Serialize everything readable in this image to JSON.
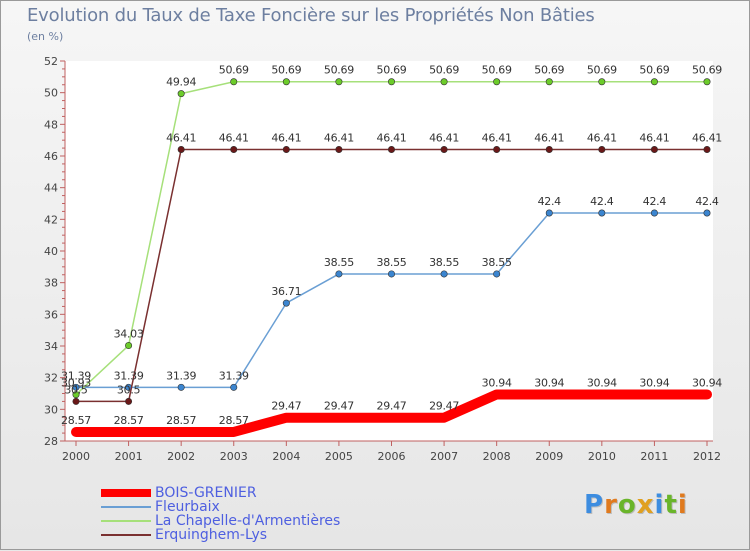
{
  "title": "Evolution du Taux de Taxe Foncière sur les Propriétés Non Bâties",
  "subtitle": "(en %)",
  "logo": {
    "text": "Proxiti",
    "letters": [
      "P",
      "r",
      "o",
      "x",
      "i",
      "t",
      "i"
    ],
    "colors": [
      "#3d8de0",
      "#e07a1e",
      "#6ab52a",
      "#e0a020",
      "#3d8de0",
      "#6ab52a",
      "#e07a1e"
    ]
  },
  "chart_data": {
    "type": "line",
    "title": "Evolution du Taux de Taxe Foncière sur les Propriétés Non Bâties",
    "ylabel": "(en %)",
    "xlabel": "",
    "ylim": [
      28,
      52
    ],
    "yticks": [
      28,
      30,
      32,
      34,
      36,
      38,
      40,
      42,
      44,
      46,
      48,
      50,
      52
    ],
    "grid": false,
    "legend": "bottom-left",
    "x": [
      "2000",
      "2001",
      "2002",
      "2003",
      "2004",
      "2005",
      "2006",
      "2007",
      "2008",
      "2009",
      "2010",
      "2011",
      "2012"
    ],
    "series": [
      {
        "name": "BOIS-GRENIER",
        "color": "#ff0000",
        "width": 10,
        "values": [
          28.57,
          28.57,
          28.57,
          28.57,
          29.47,
          29.47,
          29.47,
          29.47,
          30.94,
          30.94,
          30.94,
          30.94,
          30.94
        ],
        "labels": [
          "28.57",
          "28.57",
          "28.57",
          "28.57",
          "29.47",
          "29.47",
          "29.47",
          "29.47",
          "30.94",
          "30.94",
          "30.94",
          "30.94",
          "30.94"
        ]
      },
      {
        "name": "Fleurbaix",
        "color": "#6a9fd4",
        "pointColor": "#3b85d0",
        "width": 1.5,
        "values": [
          31.39,
          31.39,
          31.39,
          31.39,
          36.71,
          38.55,
          38.55,
          38.55,
          38.55,
          42.4,
          42.4,
          42.4,
          42.4
        ],
        "labels": [
          "31.39",
          "31.39",
          "31.39",
          "31.39",
          "36.71",
          "38.55",
          "38.55",
          "38.55",
          "38.55",
          "42.4",
          "42.4",
          "42.4",
          "42.4"
        ]
      },
      {
        "name": "La Chapelle-d'Armentières",
        "color": "#a6e07a",
        "pointColor": "#6ccc2a",
        "width": 1.5,
        "values": [
          30.93,
          34.03,
          49.94,
          50.69,
          50.69,
          50.69,
          50.69,
          50.69,
          50.69,
          50.69,
          50.69,
          50.69,
          50.69
        ],
        "labels": [
          "30.93",
          "34.03",
          "49.94",
          "50.69",
          "50.69",
          "50.69",
          "50.69",
          "50.69",
          "50.69",
          "50.69",
          "50.69",
          "50.69",
          "50.69"
        ]
      },
      {
        "name": "Erquinghem-Lys",
        "color": "#7a3030",
        "pointColor": "#6a1818",
        "width": 1.5,
        "values": [
          30.5,
          30.5,
          46.41,
          46.41,
          46.41,
          46.41,
          46.41,
          46.41,
          46.41,
          46.41,
          46.41,
          46.41,
          46.41
        ],
        "labels": [
          "30.5",
          "30.5",
          "46.41",
          "46.41",
          "46.41",
          "46.41",
          "46.41",
          "46.41",
          "46.41",
          "46.41",
          "46.41",
          "46.41",
          "46.41"
        ]
      }
    ]
  }
}
